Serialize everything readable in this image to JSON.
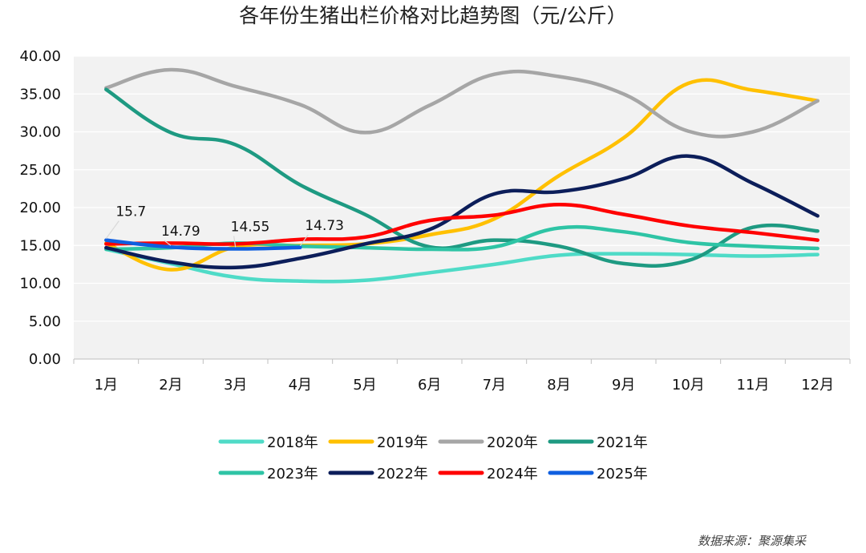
{
  "chart_data": {
    "type": "line",
    "title": "各年份生猪出栏价格对比趋势图（元/公斤）",
    "xlabel": "",
    "ylabel": "",
    "ylim": [
      0,
      40
    ],
    "yticks": [
      "0.00",
      "5.00",
      "10.00",
      "15.00",
      "20.00",
      "25.00",
      "30.00",
      "35.00",
      "40.00"
    ],
    "categories": [
      "1月",
      "2月",
      "3月",
      "4月",
      "5月",
      "6月",
      "7月",
      "8月",
      "9月",
      "10月",
      "11月",
      "12月"
    ],
    "series": [
      {
        "name": "2018年",
        "color": "#4fdbc7",
        "values": [
          14.5,
          12.6,
          10.8,
          10.3,
          10.4,
          11.4,
          12.5,
          13.7,
          13.9,
          13.8,
          13.6,
          13.8
        ]
      },
      {
        "name": "2019年",
        "color": "#ffc000",
        "values": [
          15.3,
          11.8,
          14.8,
          15.0,
          15.2,
          16.4,
          18.5,
          24.2,
          29.2,
          36.4,
          35.5,
          34.1
        ]
      },
      {
        "name": "2020年",
        "color": "#a6a6a6",
        "values": [
          35.8,
          38.2,
          36.0,
          33.6,
          29.9,
          33.5,
          37.6,
          37.3,
          35.0,
          30.1,
          30.0,
          34.1
        ]
      },
      {
        "name": "2021年",
        "color": "#1e9a82",
        "values": [
          35.6,
          29.9,
          28.3,
          23.0,
          19.1,
          14.8,
          15.7,
          14.9,
          12.6,
          13.0,
          17.4,
          16.9
        ]
      },
      {
        "name": "2023年",
        "color": "#2ec4a5",
        "values": [
          14.5,
          14.7,
          15.3,
          14.9,
          14.7,
          14.5,
          14.8,
          17.3,
          16.8,
          15.4,
          14.9,
          14.6
        ]
      },
      {
        "name": "2022年",
        "color": "#0c1e5a",
        "values": [
          14.7,
          12.8,
          12.1,
          13.3,
          15.2,
          17.1,
          21.8,
          22.1,
          23.8,
          26.8,
          23.2,
          18.9
        ]
      },
      {
        "name": "2024年",
        "color": "#ff0000",
        "values": [
          15.2,
          15.3,
          15.2,
          15.8,
          16.1,
          18.3,
          19.0,
          20.4,
          19.1,
          17.6,
          16.7,
          15.7
        ]
      },
      {
        "name": "2025年",
        "color": "#0f5fe0",
        "values": [
          15.7,
          14.79,
          14.55,
          14.73,
          null,
          null,
          null,
          null,
          null,
          null,
          null,
          null
        ]
      }
    ],
    "data_labels": [
      {
        "series": "2025年",
        "index": 0,
        "text": "15.7"
      },
      {
        "series": "2025年",
        "index": 1,
        "text": "14.79"
      },
      {
        "series": "2025年",
        "index": 2,
        "text": "14.55"
      },
      {
        "series": "2025年",
        "index": 3,
        "text": "14.73"
      }
    ],
    "legend_position": "bottom",
    "grid": "horizontal",
    "source": "数据来源：聚源集采"
  }
}
